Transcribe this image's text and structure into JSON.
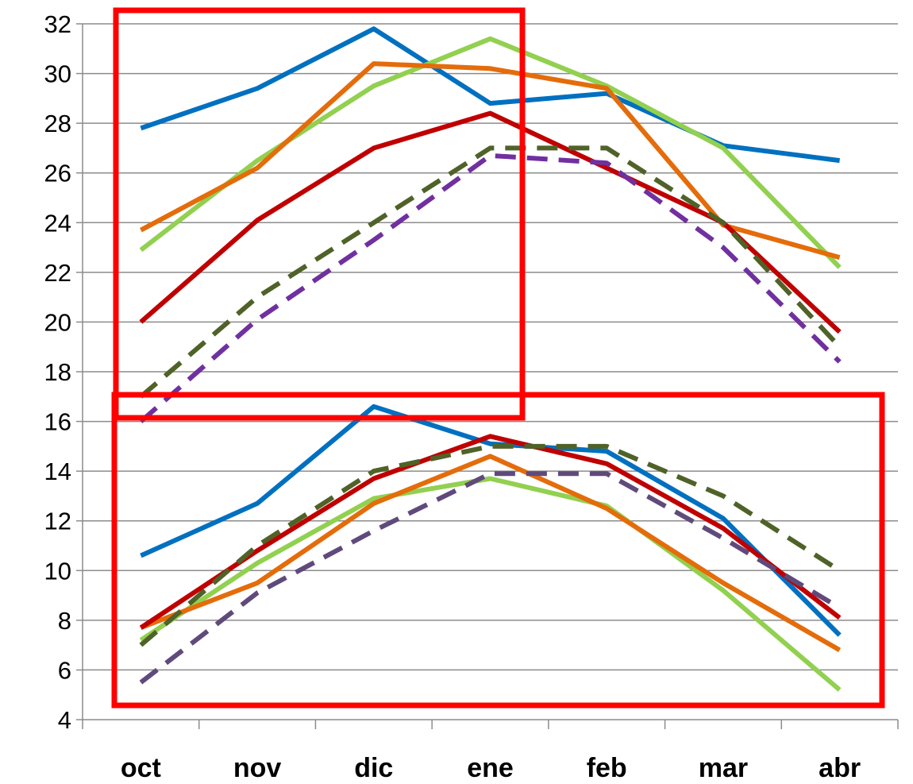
{
  "chart_data": {
    "type": "line",
    "title": "",
    "xlabel": "",
    "ylabel": "",
    "categories": [
      "oct",
      "nov",
      "dic",
      "ene",
      "feb",
      "mar",
      "abr"
    ],
    "ylim": [
      4,
      32
    ],
    "yticks": [
      4,
      6,
      8,
      10,
      12,
      14,
      16,
      18,
      20,
      22,
      24,
      26,
      28,
      30,
      32
    ],
    "grid": true,
    "legend": "none",
    "series": [
      {
        "group": "upper",
        "color": "#0070C0",
        "dash": false,
        "values": [
          27.8,
          29.4,
          31.8,
          28.8,
          29.2,
          27.1,
          26.5
        ]
      },
      {
        "group": "upper",
        "color": "#92D050",
        "dash": false,
        "values": [
          22.9,
          26.5,
          29.5,
          31.4,
          29.5,
          27.0,
          22.2
        ]
      },
      {
        "group": "upper",
        "color": "#E46C0A",
        "dash": false,
        "values": [
          23.7,
          26.2,
          30.4,
          30.2,
          29.4,
          23.9,
          22.6
        ]
      },
      {
        "group": "upper",
        "color": "#C00000",
        "dash": false,
        "values": [
          20.0,
          24.1,
          27.0,
          28.4,
          26.2,
          24.0,
          19.6
        ]
      },
      {
        "group": "upper",
        "color": "#4F6228",
        "dash": true,
        "values": [
          17.0,
          21.0,
          24.0,
          27.0,
          27.0,
          24.0,
          19.0
        ]
      },
      {
        "group": "upper",
        "color": "#7030A0",
        "dash": true,
        "values": [
          16.0,
          20.1,
          23.3,
          26.7,
          26.4,
          23.0,
          18.4
        ]
      },
      {
        "group": "lower",
        "color": "#0070C0",
        "dash": false,
        "values": [
          10.6,
          12.7,
          16.6,
          15.1,
          14.8,
          12.1,
          7.4
        ]
      },
      {
        "group": "lower",
        "color": "#92D050",
        "dash": false,
        "values": [
          7.2,
          10.3,
          12.9,
          13.7,
          12.6,
          9.2,
          5.2
        ]
      },
      {
        "group": "lower",
        "color": "#E46C0A",
        "dash": false,
        "values": [
          7.7,
          9.5,
          12.7,
          14.6,
          12.5,
          9.5,
          6.8
        ]
      },
      {
        "group": "lower",
        "color": "#C00000",
        "dash": false,
        "values": [
          7.7,
          10.8,
          13.7,
          15.4,
          14.3,
          11.7,
          8.1
        ]
      },
      {
        "group": "lower",
        "color": "#4F6228",
        "dash": true,
        "values": [
          7.0,
          11.0,
          14.0,
          15.0,
          15.0,
          13.0,
          10.0
        ]
      },
      {
        "group": "lower",
        "color": "#604A7B",
        "dash": true,
        "values": [
          5.5,
          9.1,
          11.6,
          13.9,
          13.9,
          11.3,
          8.5
        ]
      }
    ],
    "highlight_color": "#FF0000"
  }
}
